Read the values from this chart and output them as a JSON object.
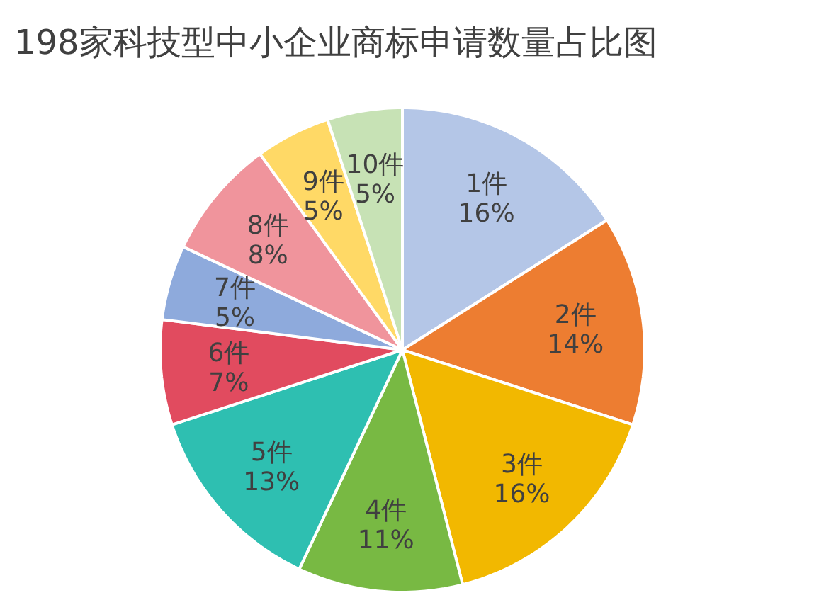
{
  "chart_data": {
    "type": "pie",
    "title": "198家科技型中小企业商标申请数量占比图",
    "categories": [
      "1件",
      "2件",
      "3件",
      "4件",
      "5件",
      "6件",
      "7件",
      "8件",
      "9件",
      "10件"
    ],
    "values": [
      16,
      14,
      16,
      11,
      13,
      7,
      5,
      8,
      5,
      5
    ],
    "value_labels": [
      "16%",
      "14%",
      "16%",
      "11%",
      "13%",
      "7%",
      "5%",
      "8%",
      "5%",
      "5%"
    ],
    "colors": [
      "#b4c6e7",
      "#ed7d31",
      "#f2b800",
      "#78b943",
      "#2ebfb1",
      "#e14b5f",
      "#8eaadc",
      "#f0949c",
      "#ffd966",
      "#c7e2b5"
    ]
  }
}
